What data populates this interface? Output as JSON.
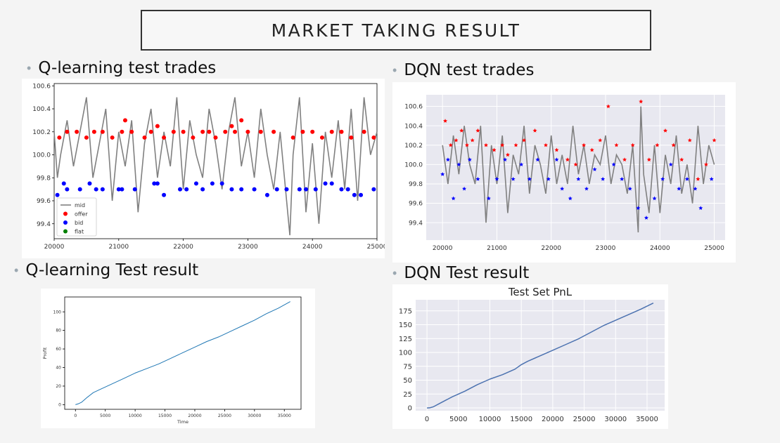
{
  "slide": {
    "title": "MARKET TAKING RESULT",
    "headings": {
      "q_trades": "Q-learning test trades",
      "dqn_trades": "DQN test trades",
      "q_result": "Q-learning Test result",
      "dqn_result": "DQN  Test result"
    }
  },
  "colors": {
    "mid": "#808080",
    "offer": "#ff0000",
    "bid": "#0000ff",
    "flat": "#008000",
    "seaborn_bg": "#e8e8f0",
    "pnl_line": "#4c72b0",
    "profit_line": "#1f77b4"
  },
  "chart_data": [
    {
      "id": "q_trades",
      "type": "line",
      "style": "matplotlib",
      "xlim": [
        20000,
        25000
      ],
      "ylim": [
        99.27,
        100.62
      ],
      "x_ticks": [
        20000,
        21000,
        22000,
        23000,
        24000,
        25000
      ],
      "y_ticks": [
        99.4,
        99.6,
        99.8,
        100.0,
        100.2,
        100.4,
        100.6
      ],
      "y_tick_labels": [
        "99.4",
        "99.6",
        "99.8",
        "100.0",
        "100.2",
        "100.4",
        "100.6"
      ],
      "legend": {
        "placement": "lower-left",
        "items": [
          {
            "name": "mid",
            "marker": "line",
            "color": "#808080"
          },
          {
            "name": "offer",
            "marker": "dot",
            "color": "#ff0000"
          },
          {
            "name": "bid",
            "marker": "dot",
            "color": "#0000ff"
          },
          {
            "name": "flat",
            "marker": "dot",
            "color": "#008000"
          }
        ]
      },
      "series": [
        {
          "name": "mid",
          "kind": "line",
          "x": [
            20000,
            20050,
            20100,
            20200,
            20300,
            20400,
            20500,
            20600,
            20700,
            20800,
            20900,
            21000,
            21100,
            21200,
            21300,
            21400,
            21500,
            21600,
            21700,
            21800,
            21900,
            22000,
            22100,
            22200,
            22300,
            22400,
            22500,
            22600,
            22700,
            22800,
            22900,
            23000,
            23100,
            23200,
            23300,
            23400,
            23500,
            23600,
            23650,
            23700,
            23800,
            23900,
            24000,
            24100,
            24200,
            24300,
            24400,
            24500,
            24600,
            24700,
            24800,
            24900,
            25000
          ],
          "y": [
            100.2,
            99.8,
            100.0,
            100.3,
            99.9,
            100.2,
            100.5,
            99.8,
            100.1,
            100.4,
            99.6,
            100.2,
            99.9,
            100.3,
            99.5,
            100.1,
            100.4,
            99.8,
            100.2,
            99.9,
            100.5,
            99.7,
            100.3,
            100.0,
            99.8,
            100.4,
            100.1,
            99.7,
            100.2,
            100.5,
            99.9,
            100.2,
            99.8,
            100.4,
            100.0,
            99.7,
            100.2,
            99.6,
            99.3,
            100.0,
            100.5,
            99.5,
            100.1,
            99.4,
            100.2,
            99.8,
            100.3,
            99.7,
            100.4,
            99.6,
            100.5,
            100.0,
            100.2
          ]
        },
        {
          "name": "offer",
          "kind": "markers",
          "x": [
            20080,
            20200,
            20350,
            20500,
            20620,
            20750,
            20900,
            21050,
            21100,
            21200,
            21400,
            21500,
            21600,
            21700,
            21850,
            22000,
            22150,
            22300,
            22400,
            22500,
            22650,
            22750,
            22800,
            22900,
            23000,
            23200,
            23400,
            23700,
            23850,
            24000,
            24150,
            24300,
            24450,
            24600,
            24800,
            24950
          ],
          "y": [
            100.15,
            100.2,
            100.2,
            100.15,
            100.2,
            100.2,
            100.15,
            100.2,
            100.3,
            100.2,
            100.15,
            100.2,
            100.25,
            100.15,
            100.2,
            100.2,
            100.15,
            100.2,
            100.2,
            100.15,
            100.2,
            100.25,
            100.2,
            100.3,
            100.2,
            100.2,
            100.2,
            100.15,
            100.2,
            100.2,
            100.15,
            100.2,
            100.2,
            100.15,
            100.2,
            100.15
          ]
        },
        {
          "name": "bid",
          "kind": "markers",
          "x": [
            20050,
            20150,
            20200,
            20400,
            20550,
            20650,
            20750,
            21000,
            21050,
            21250,
            21550,
            21600,
            21700,
            21950,
            22050,
            22200,
            22300,
            22450,
            22600,
            22750,
            22900,
            23100,
            23300,
            23450,
            23600,
            23800,
            23900,
            24050,
            24200,
            24300,
            24450,
            24550,
            24650,
            24750,
            24950
          ],
          "y": [
            99.65,
            99.75,
            99.7,
            99.7,
            99.75,
            99.7,
            99.7,
            99.7,
            99.7,
            99.7,
            99.75,
            99.75,
            99.65,
            99.7,
            99.7,
            99.75,
            99.7,
            99.75,
            99.75,
            99.7,
            99.7,
            99.7,
            99.65,
            99.7,
            99.7,
            99.7,
            99.7,
            99.7,
            99.75,
            99.75,
            99.7,
            99.7,
            99.65,
            99.65,
            99.7
          ]
        }
      ]
    },
    {
      "id": "dqn_trades",
      "type": "line",
      "style": "seaborn",
      "xlim": [
        19700,
        25200
      ],
      "ylim": [
        99.22,
        100.72
      ],
      "x_ticks": [
        20000,
        21000,
        22000,
        23000,
        24000,
        25000
      ],
      "y_ticks": [
        99.4,
        99.6,
        99.8,
        100.0,
        100.2,
        100.4,
        100.6
      ],
      "y_tick_labels": [
        "99.4",
        "99.6",
        "99.8",
        "100.0",
        "100.2",
        "100.4",
        "100.6"
      ],
      "series": [
        {
          "name": "mid",
          "kind": "line",
          "x": [
            20000,
            20100,
            20200,
            20300,
            20400,
            20500,
            20600,
            20700,
            20800,
            20900,
            21000,
            21100,
            21200,
            21300,
            21400,
            21500,
            21600,
            21700,
            21800,
            21900,
            22000,
            22100,
            22200,
            22300,
            22400,
            22500,
            22600,
            22700,
            22800,
            22900,
            23000,
            23100,
            23200,
            23300,
            23400,
            23500,
            23600,
            23650,
            23700,
            23800,
            23900,
            24000,
            24100,
            24200,
            24300,
            24400,
            24500,
            24600,
            24700,
            24800,
            24900,
            25000
          ],
          "y": [
            100.2,
            99.8,
            100.3,
            99.9,
            100.4,
            100.0,
            99.8,
            100.4,
            99.4,
            100.2,
            99.8,
            100.3,
            99.5,
            100.1,
            99.9,
            100.4,
            99.7,
            100.2,
            100.0,
            99.7,
            100.3,
            99.8,
            100.1,
            99.8,
            100.4,
            99.9,
            100.2,
            99.8,
            100.1,
            100.0,
            100.3,
            99.8,
            100.1,
            100.0,
            99.7,
            100.2,
            99.3,
            100.6,
            99.9,
            99.5,
            100.2,
            99.5,
            100.1,
            99.8,
            100.3,
            99.7,
            100.0,
            99.6,
            100.4,
            99.8,
            100.2,
            100.0
          ]
        },
        {
          "name": "offer",
          "kind": "stars",
          "x": [
            20050,
            20150,
            20250,
            20350,
            20450,
            20550,
            20650,
            20800,
            20950,
            21100,
            21200,
            21350,
            21500,
            21700,
            21900,
            22100,
            22300,
            22450,
            22600,
            22750,
            22900,
            23050,
            23200,
            23350,
            23500,
            23650,
            23800,
            23950,
            24100,
            24250,
            24400,
            24550,
            24700,
            24850,
            25000
          ],
          "y": [
            100.45,
            100.2,
            100.25,
            100.35,
            100.2,
            100.25,
            100.35,
            100.2,
            100.15,
            100.2,
            100.1,
            100.2,
            100.25,
            100.35,
            100.2,
            100.15,
            100.05,
            100.0,
            100.2,
            100.15,
            100.25,
            100.6,
            100.2,
            100.05,
            100.2,
            100.65,
            100.05,
            100.2,
            100.35,
            100.2,
            100.05,
            100.25,
            99.85,
            100.0,
            100.25
          ]
        },
        {
          "name": "bid",
          "kind": "stars",
          "x": [
            20000,
            20100,
            20200,
            20300,
            20400,
            20500,
            20650,
            20850,
            21000,
            21150,
            21300,
            21450,
            21600,
            21750,
            21950,
            22100,
            22200,
            22350,
            22500,
            22650,
            22800,
            22950,
            23150,
            23300,
            23450,
            23600,
            23750,
            23900,
            24050,
            24200,
            24350,
            24500,
            24650,
            24750,
            24950
          ],
          "y": [
            99.9,
            100.05,
            99.65,
            100.0,
            99.75,
            100.05,
            99.85,
            99.65,
            99.85,
            100.05,
            99.85,
            100.0,
            99.85,
            100.05,
            99.85,
            100.05,
            99.75,
            99.65,
            99.85,
            99.75,
            99.95,
            99.85,
            100.0,
            99.85,
            99.75,
            99.55,
            99.45,
            99.65,
            99.85,
            100.0,
            99.75,
            99.85,
            99.75,
            99.55,
            99.85
          ]
        }
      ]
    },
    {
      "id": "q_result",
      "type": "line",
      "style": "matplotlib",
      "xlabel": "Time",
      "ylabel": "Profit",
      "xlim": [
        -1800,
        37800
      ],
      "ylim": [
        -5,
        116
      ],
      "x_ticks": [
        0,
        5000,
        10000,
        15000,
        20000,
        25000,
        30000,
        35000
      ],
      "y_ticks": [
        0,
        20,
        40,
        60,
        80,
        100
      ],
      "series": [
        {
          "name": "profit",
          "x": [
            0,
            500,
            1000,
            2000,
            3000,
            4000,
            6000,
            8000,
            10000,
            12000,
            14000,
            16000,
            18000,
            20000,
            22000,
            24000,
            26000,
            28000,
            30000,
            32000,
            34000,
            36000
          ],
          "y": [
            0,
            1,
            2.5,
            8,
            13,
            16,
            22,
            28,
            34,
            39,
            44,
            50,
            56,
            62,
            68,
            73,
            79,
            85,
            91,
            98,
            104,
            111
          ]
        }
      ]
    },
    {
      "id": "dqn_result",
      "type": "line",
      "style": "seaborn",
      "title": "Test Set PnL",
      "xlim": [
        -1800,
        37800
      ],
      "ylim": [
        -5,
        195
      ],
      "x_ticks": [
        0,
        5000,
        10000,
        15000,
        20000,
        25000,
        30000,
        35000
      ],
      "y_ticks": [
        0,
        25,
        50,
        75,
        100,
        125,
        150,
        175
      ],
      "series": [
        {
          "name": "pnl",
          "x": [
            0,
            500,
            1000,
            2000,
            4000,
            6000,
            8000,
            10000,
            12000,
            14000,
            15000,
            16000,
            18000,
            20000,
            22000,
            24000,
            26000,
            28000,
            30000,
            32000,
            34000,
            36000
          ],
          "y": [
            0,
            0.5,
            2,
            8,
            20,
            30,
            42,
            52,
            60,
            70,
            78,
            84,
            94,
            104,
            114,
            124,
            136,
            148,
            158,
            168,
            178,
            189
          ]
        }
      ]
    }
  ]
}
